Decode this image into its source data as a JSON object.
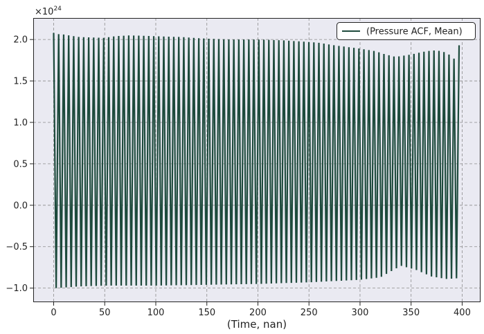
{
  "chart_data": {
    "type": "line",
    "title": "",
    "xlabel": "(Time, nan)",
    "ylabel": "",
    "y_offset_label": "×10",
    "y_offset_exponent": "24",
    "xlim": [
      -20,
      418
    ],
    "ylim": [
      -1.17,
      2.26
    ],
    "x_ticks": [
      0,
      50,
      100,
      150,
      200,
      250,
      300,
      350,
      400
    ],
    "x_tick_labels": [
      "0",
      "50",
      "100",
      "150",
      "200",
      "250",
      "300",
      "350",
      "400"
    ],
    "y_ticks": [
      -1.0,
      -0.5,
      0.0,
      0.5,
      1.0,
      1.5,
      2.0
    ],
    "y_tick_labels": [
      "−1.0",
      "−0.5",
      "0.0",
      "0.5",
      "1.0",
      "1.5",
      "2.0"
    ],
    "grid": true,
    "legend": "upper right",
    "colors": {
      "background": "#eaeaf2",
      "line": "#1d4a3c",
      "grid": "#8c8c8c"
    },
    "series": [
      {
        "name": "(Pressure ACF, Mean)",
        "period": 4.9,
        "x_start": 0,
        "x_end": 397,
        "start_value": 2.08,
        "end_value": 1.93,
        "upper_envelope": {
          "x": [
            0,
            10,
            25,
            50,
            60,
            75,
            100,
            125,
            150,
            175,
            200,
            225,
            250,
            260,
            275,
            300,
            315,
            325,
            335,
            350,
            365,
            375,
            385,
            392
          ],
          "y": [
            2.07,
            2.06,
            2.03,
            2.02,
            2.04,
            2.05,
            2.04,
            2.03,
            2.01,
            2.0,
            2.0,
            1.99,
            1.97,
            1.96,
            1.93,
            1.89,
            1.86,
            1.82,
            1.79,
            1.82,
            1.86,
            1.87,
            1.84,
            1.77
          ]
        },
        "lower_envelope": {
          "x": [
            3,
            25,
            50,
            75,
            100,
            150,
            200,
            250,
            300,
            320,
            340,
            355,
            370,
            385,
            397
          ],
          "y": [
            -1.0,
            -0.98,
            -0.97,
            -0.97,
            -0.97,
            -0.96,
            -0.95,
            -0.93,
            -0.9,
            -0.87,
            -0.73,
            -0.78,
            -0.86,
            -0.89,
            -0.88
          ]
        }
      }
    ]
  }
}
